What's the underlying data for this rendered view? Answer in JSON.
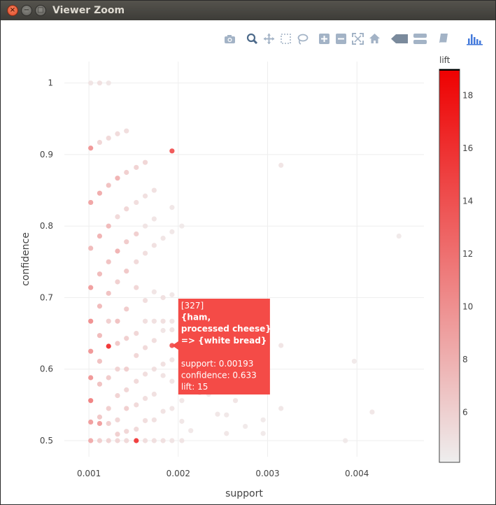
{
  "window": {
    "title": "Viewer Zoom",
    "close_glyph": "×",
    "min_glyph": "−",
    "max_glyph": "□"
  },
  "modebar": {
    "icons": [
      "camera-icon",
      "zoom-icon",
      "pan-icon",
      "box-select-icon",
      "lasso-icon",
      "zoom-in-icon",
      "zoom-out-icon",
      "autoscale-icon",
      "reset-axes-icon",
      "spike-lines-icon",
      "compare-hover-icon",
      "closest-hover-icon",
      "plotly-logo-icon"
    ],
    "icon_color": "#a3b3c6",
    "active_color": "#4d6a8a",
    "logo_color": "#447adb"
  },
  "chart_data": {
    "type": "scatter",
    "xlabel": "support",
    "ylabel": "confidence",
    "xlim": [
      0.000725,
      0.00475
    ],
    "ylim": [
      0.4775,
      1.03
    ],
    "xticks": [
      0.001,
      0.002,
      0.003,
      0.004
    ],
    "xtick_labels": [
      "0.001",
      "0.002",
      "0.003",
      "0.004"
    ],
    "yticks": [
      0.5,
      0.6,
      0.7,
      0.8,
      0.9,
      1.0
    ],
    "ytick_labels": [
      "0.5",
      "0.6",
      "0.7",
      "0.8",
      "0.9",
      "1"
    ],
    "grid": true,
    "colorbar": {
      "title": "lift",
      "min": 4.1,
      "max": 19.0,
      "ticks": [
        6,
        8,
        10,
        12,
        14,
        16,
        18
      ],
      "tick_labels": [
        "6",
        "8",
        "10",
        "12",
        "14",
        "16",
        "18"
      ],
      "color_low": "#eeeeee",
      "color_high": "#ee0000"
    },
    "points": [
      {
        "x": 0.00102,
        "y": 1.0,
        "lift": 5.0
      },
      {
        "x": 0.00112,
        "y": 1.0,
        "lift": 5.2
      },
      {
        "x": 0.00122,
        "y": 1.0,
        "lift": 4.8
      },
      {
        "x": 0.00102,
        "y": 0.909,
        "lift": 10.5
      },
      {
        "x": 0.00112,
        "y": 0.917,
        "lift": 6.0
      },
      {
        "x": 0.00122,
        "y": 0.923,
        "lift": 5.8
      },
      {
        "x": 0.00132,
        "y": 0.929,
        "lift": 5.6
      },
      {
        "x": 0.00142,
        "y": 0.933,
        "lift": 5.5
      },
      {
        "x": 0.00193,
        "y": 0.905,
        "lift": 15.0
      },
      {
        "x": 0.00315,
        "y": 0.885,
        "lift": 5.0
      },
      {
        "x": 0.00447,
        "y": 0.786,
        "lift": 4.6
      },
      {
        "x": 0.00163,
        "y": 0.889,
        "lift": 6.0
      },
      {
        "x": 0.00153,
        "y": 0.882,
        "lift": 6.2
      },
      {
        "x": 0.00142,
        "y": 0.875,
        "lift": 6.5
      },
      {
        "x": 0.00132,
        "y": 0.867,
        "lift": 8.5
      },
      {
        "x": 0.00122,
        "y": 0.857,
        "lift": 7.5
      },
      {
        "x": 0.00112,
        "y": 0.846,
        "lift": 9.0
      },
      {
        "x": 0.00102,
        "y": 0.833,
        "lift": 9.5
      },
      {
        "x": 0.00173,
        "y": 0.85,
        "lift": 5.2
      },
      {
        "x": 0.00163,
        "y": 0.842,
        "lift": 5.3
      },
      {
        "x": 0.00153,
        "y": 0.833,
        "lift": 5.5
      },
      {
        "x": 0.00142,
        "y": 0.824,
        "lift": 6.0
      },
      {
        "x": 0.00132,
        "y": 0.813,
        "lift": 5.8
      },
      {
        "x": 0.00122,
        "y": 0.8,
        "lift": 8.0
      },
      {
        "x": 0.00112,
        "y": 0.786,
        "lift": 8.5
      },
      {
        "x": 0.00102,
        "y": 0.769,
        "lift": 8.0
      },
      {
        "x": 0.00193,
        "y": 0.826,
        "lift": 4.8
      },
      {
        "x": 0.00173,
        "y": 0.81,
        "lift": 4.9
      },
      {
        "x": 0.00163,
        "y": 0.8,
        "lift": 5.0
      },
      {
        "x": 0.00153,
        "y": 0.789,
        "lift": 6.5
      },
      {
        "x": 0.00142,
        "y": 0.778,
        "lift": 6.8
      },
      {
        "x": 0.00132,
        "y": 0.765,
        "lift": 8.5
      },
      {
        "x": 0.00122,
        "y": 0.75,
        "lift": 7.5
      },
      {
        "x": 0.00112,
        "y": 0.733,
        "lift": 8.0
      },
      {
        "x": 0.00102,
        "y": 0.714,
        "lift": 10.0
      },
      {
        "x": 0.00204,
        "y": 0.8,
        "lift": 4.6
      },
      {
        "x": 0.00193,
        "y": 0.792,
        "lift": 4.7
      },
      {
        "x": 0.00183,
        "y": 0.783,
        "lift": 5.0
      },
      {
        "x": 0.00173,
        "y": 0.773,
        "lift": 5.2
      },
      {
        "x": 0.00163,
        "y": 0.762,
        "lift": 5.4
      },
      {
        "x": 0.00153,
        "y": 0.75,
        "lift": 5.8
      },
      {
        "x": 0.00142,
        "y": 0.737,
        "lift": 7.0
      },
      {
        "x": 0.00132,
        "y": 0.722,
        "lift": 6.5
      },
      {
        "x": 0.00122,
        "y": 0.706,
        "lift": 7.5
      },
      {
        "x": 0.00112,
        "y": 0.688,
        "lift": 8.0
      },
      {
        "x": 0.00102,
        "y": 0.667,
        "lift": 11.0
      },
      {
        "x": 0.00153,
        "y": 0.714,
        "lift": 6.0
      },
      {
        "x": 0.00173,
        "y": 0.708,
        "lift": 5.0
      },
      {
        "x": 0.00183,
        "y": 0.7,
        "lift": 5.2
      },
      {
        "x": 0.00193,
        "y": 0.704,
        "lift": 4.8
      },
      {
        "x": 0.00163,
        "y": 0.696,
        "lift": 5.5
      },
      {
        "x": 0.00142,
        "y": 0.684,
        "lift": 6.8
      },
      {
        "x": 0.00132,
        "y": 0.667,
        "lift": 7.5
      },
      {
        "x": 0.00122,
        "y": 0.667,
        "lift": 6.5
      },
      {
        "x": 0.00112,
        "y": 0.647,
        "lift": 8.0
      },
      {
        "x": 0.00102,
        "y": 0.625,
        "lift": 10.5
      },
      {
        "x": 0.00204,
        "y": 0.68,
        "lift": 4.9
      },
      {
        "x": 0.00193,
        "y": 0.667,
        "lift": 5.0
      },
      {
        "x": 0.00183,
        "y": 0.667,
        "lift": 5.3
      },
      {
        "x": 0.00173,
        "y": 0.667,
        "lift": 5.2
      },
      {
        "x": 0.00163,
        "y": 0.667,
        "lift": 5.4
      },
      {
        "x": 0.00153,
        "y": 0.65,
        "lift": 6.0
      },
      {
        "x": 0.00142,
        "y": 0.643,
        "lift": 6.5
      },
      {
        "x": 0.00132,
        "y": 0.636,
        "lift": 7.0
      },
      {
        "x": 0.00122,
        "y": 0.632,
        "lift": 17.5
      },
      {
        "x": 0.00112,
        "y": 0.611,
        "lift": 7.5
      },
      {
        "x": 0.00102,
        "y": 0.588,
        "lift": 10.5
      },
      {
        "x": 0.00204,
        "y": 0.643,
        "lift": 5.0
      },
      {
        "x": 0.00193,
        "y": 0.655,
        "lift": 5.1
      },
      {
        "x": 0.00183,
        "y": 0.654,
        "lift": 5.0
      },
      {
        "x": 0.00173,
        "y": 0.64,
        "lift": 5.5
      },
      {
        "x": 0.00163,
        "y": 0.63,
        "lift": 5.8
      },
      {
        "x": 0.00153,
        "y": 0.619,
        "lift": 6.0
      },
      {
        "x": 0.00142,
        "y": 0.6,
        "lift": 6.5
      },
      {
        "x": 0.00132,
        "y": 0.6,
        "lift": 6.2
      },
      {
        "x": 0.00122,
        "y": 0.588,
        "lift": 6.8
      },
      {
        "x": 0.00112,
        "y": 0.579,
        "lift": 7.5
      },
      {
        "x": 0.00102,
        "y": 0.556,
        "lift": 12.0
      },
      {
        "x": 0.00193,
        "y": 0.633,
        "lift": 15.0
      },
      {
        "x": 0.00204,
        "y": 0.62,
        "lift": 5.0
      },
      {
        "x": 0.00193,
        "y": 0.613,
        "lift": 5.1
      },
      {
        "x": 0.00183,
        "y": 0.607,
        "lift": 5.2
      },
      {
        "x": 0.00173,
        "y": 0.6,
        "lift": 5.3
      },
      {
        "x": 0.00163,
        "y": 0.593,
        "lift": 5.5
      },
      {
        "x": 0.00153,
        "y": 0.583,
        "lift": 5.8
      },
      {
        "x": 0.00142,
        "y": 0.571,
        "lift": 6.0
      },
      {
        "x": 0.00132,
        "y": 0.563,
        "lift": 6.2
      },
      {
        "x": 0.00122,
        "y": 0.545,
        "lift": 6.5
      },
      {
        "x": 0.00112,
        "y": 0.533,
        "lift": 7.0
      },
      {
        "x": 0.00102,
        "y": 0.526,
        "lift": 10.0
      },
      {
        "x": 0.00204,
        "y": 0.594,
        "lift": 4.9
      },
      {
        "x": 0.00193,
        "y": 0.583,
        "lift": 5.0
      },
      {
        "x": 0.00183,
        "y": 0.591,
        "lift": 5.1
      },
      {
        "x": 0.00173,
        "y": 0.565,
        "lift": 5.2
      },
      {
        "x": 0.00163,
        "y": 0.559,
        "lift": 5.4
      },
      {
        "x": 0.00153,
        "y": 0.55,
        "lift": 5.8
      },
      {
        "x": 0.00142,
        "y": 0.545,
        "lift": 6.5
      },
      {
        "x": 0.00132,
        "y": 0.529,
        "lift": 6.0
      },
      {
        "x": 0.00122,
        "y": 0.524,
        "lift": 6.5
      },
      {
        "x": 0.00112,
        "y": 0.524,
        "lift": 10.0
      },
      {
        "x": 0.00102,
        "y": 0.5,
        "lift": 9.0
      },
      {
        "x": 0.00214,
        "y": 0.571,
        "lift": 4.8
      },
      {
        "x": 0.00224,
        "y": 0.567,
        "lift": 4.9
      },
      {
        "x": 0.00234,
        "y": 0.565,
        "lift": 4.7
      },
      {
        "x": 0.00204,
        "y": 0.556,
        "lift": 4.8
      },
      {
        "x": 0.00193,
        "y": 0.545,
        "lift": 5.0
      },
      {
        "x": 0.00183,
        "y": 0.541,
        "lift": 5.1
      },
      {
        "x": 0.00173,
        "y": 0.529,
        "lift": 5.2
      },
      {
        "x": 0.00163,
        "y": 0.528,
        "lift": 5.5
      },
      {
        "x": 0.00153,
        "y": 0.516,
        "lift": 5.8
      },
      {
        "x": 0.00142,
        "y": 0.513,
        "lift": 6.0
      },
      {
        "x": 0.00132,
        "y": 0.509,
        "lift": 6.5
      },
      {
        "x": 0.00112,
        "y": 0.5,
        "lift": 6.5
      },
      {
        "x": 0.00122,
        "y": 0.5,
        "lift": 6.2
      },
      {
        "x": 0.00132,
        "y": 0.5,
        "lift": 6.0
      },
      {
        "x": 0.00142,
        "y": 0.5,
        "lift": 5.8
      },
      {
        "x": 0.00153,
        "y": 0.5,
        "lift": 17.0
      },
      {
        "x": 0.00163,
        "y": 0.5,
        "lift": 5.5
      },
      {
        "x": 0.00173,
        "y": 0.5,
        "lift": 5.3
      },
      {
        "x": 0.00183,
        "y": 0.5,
        "lift": 5.2
      },
      {
        "x": 0.00193,
        "y": 0.5,
        "lift": 5.0
      },
      {
        "x": 0.00204,
        "y": 0.5,
        "lift": 4.9
      },
      {
        "x": 0.00204,
        "y": 0.527,
        "lift": 4.8
      },
      {
        "x": 0.00214,
        "y": 0.514,
        "lift": 4.7
      },
      {
        "x": 0.00244,
        "y": 0.537,
        "lift": 4.8
      },
      {
        "x": 0.00254,
        "y": 0.536,
        "lift": 4.7
      },
      {
        "x": 0.00254,
        "y": 0.51,
        "lift": 4.8
      },
      {
        "x": 0.00264,
        "y": 0.556,
        "lift": 4.9
      },
      {
        "x": 0.00275,
        "y": 0.52,
        "lift": 4.6
      },
      {
        "x": 0.00295,
        "y": 0.529,
        "lift": 4.6
      },
      {
        "x": 0.00295,
        "y": 0.51,
        "lift": 4.6
      },
      {
        "x": 0.00315,
        "y": 0.633,
        "lift": 4.9
      },
      {
        "x": 0.00315,
        "y": 0.545,
        "lift": 4.8
      },
      {
        "x": 0.00397,
        "y": 0.611,
        "lift": 4.6
      },
      {
        "x": 0.00417,
        "y": 0.54,
        "lift": 4.8
      },
      {
        "x": 0.00387,
        "y": 0.5,
        "lift": 4.6
      }
    ],
    "tooltip": {
      "x": 0.00193,
      "y": 0.633,
      "bg": "#f44b47",
      "lines": [
        "[327]",
        " {ham,",
        "  processed cheese}",
        "   => {white bread}",
        "",
        "support: 0.00193",
        "confidence: 0.633",
        "lift: 15"
      ],
      "bold_lines": [
        1,
        2,
        3
      ]
    }
  }
}
